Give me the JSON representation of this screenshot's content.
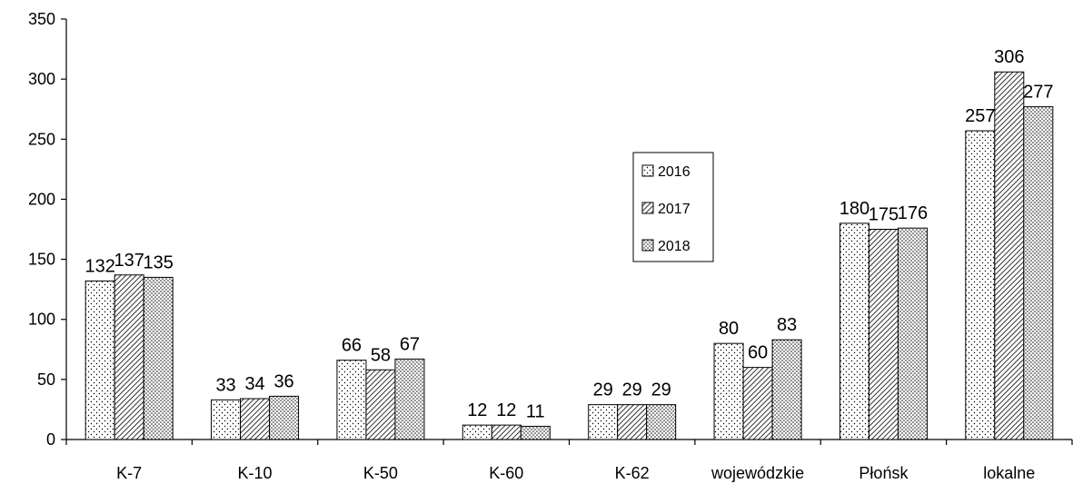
{
  "chart_data": {
    "type": "bar",
    "categories": [
      "K-7",
      "K-10",
      "K-50",
      "K-60",
      "K-62",
      "wojewódzkie",
      "Płońsk",
      "lokalne"
    ],
    "series": [
      {
        "name": "2016",
        "pattern": "dots-sparse",
        "values": [
          132,
          33,
          66,
          12,
          29,
          80,
          180,
          257
        ]
      },
      {
        "name": "2017",
        "pattern": "diagonal",
        "values": [
          137,
          34,
          58,
          12,
          29,
          60,
          175,
          306
        ]
      },
      {
        "name": "2018",
        "pattern": "dots-dense",
        "values": [
          135,
          36,
          67,
          11,
          29,
          83,
          176,
          277
        ]
      }
    ],
    "ylim": [
      0,
      350
    ],
    "yticks": [
      0,
      50,
      100,
      150,
      200,
      250,
      300,
      350
    ],
    "legend_position": "center-right",
    "grid": false,
    "colors": {
      "bar_fill": "#ffffff",
      "pattern": "#000000",
      "stroke": "#000000"
    }
  }
}
